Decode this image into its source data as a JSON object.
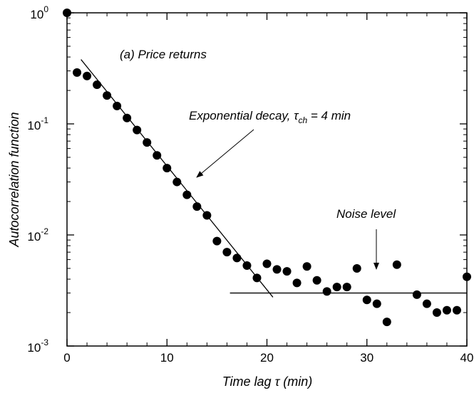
{
  "chart_data": {
    "type": "scatter",
    "title": "",
    "xlabel": "Time lag τ (min)",
    "ylabel": "Autocorrelation function",
    "xlim": [
      0,
      40
    ],
    "ylim": [
      0.001,
      1
    ],
    "yscale": "log",
    "grid": false,
    "x_ticks": [
      0,
      10,
      20,
      30,
      40
    ],
    "y_ticks": [
      {
        "value": 1,
        "base": "10",
        "exp": "0"
      },
      {
        "value": 0.1,
        "base": "10",
        "exp": "-1"
      },
      {
        "value": 0.01,
        "base": "10",
        "exp": "-2"
      },
      {
        "value": 0.001,
        "base": "10",
        "exp": "-3"
      }
    ],
    "series": [
      {
        "x": [
          0,
          1,
          2,
          3,
          4,
          5,
          6,
          7,
          8,
          9,
          10,
          11,
          12,
          13,
          14,
          15,
          16,
          17,
          18,
          19,
          20,
          21,
          22,
          23,
          24,
          25,
          26,
          27,
          28,
          29,
          30,
          31,
          32,
          33,
          34,
          35,
          36,
          37,
          38,
          39,
          40
        ],
        "y": [
          1.0,
          0.29,
          0.27,
          0.225,
          0.18,
          0.145,
          0.113,
          0.088,
          0.068,
          0.052,
          0.04,
          0.03,
          0.023,
          0.018,
          0.015,
          0.0088,
          0.007,
          0.0062,
          0.0053,
          0.0041,
          0.0055,
          0.0049,
          0.0047,
          0.0037,
          0.0052,
          0.0039,
          0.0031,
          0.0034,
          0.0034,
          0.005,
          0.0026,
          0.0024,
          0.00165,
          0.0054,
          null,
          0.0029,
          0.0024,
          0.002,
          0.0021,
          0.0021,
          0.0042
        ]
      }
    ],
    "fit_line": {
      "x": [
        1.4,
        20.6
      ],
      "y": [
        0.38,
        0.00275
      ]
    },
    "noise_line": {
      "x": [
        16.3,
        40
      ],
      "y": [
        0.003,
        0.003
      ]
    },
    "annotations": {
      "panel_label": "(a) Price returns",
      "decay_label_main": "Exponential decay, τ",
      "decay_label_sub": "ch",
      "decay_label_tail": " = 4 min",
      "noise_label": "Noise level"
    }
  }
}
